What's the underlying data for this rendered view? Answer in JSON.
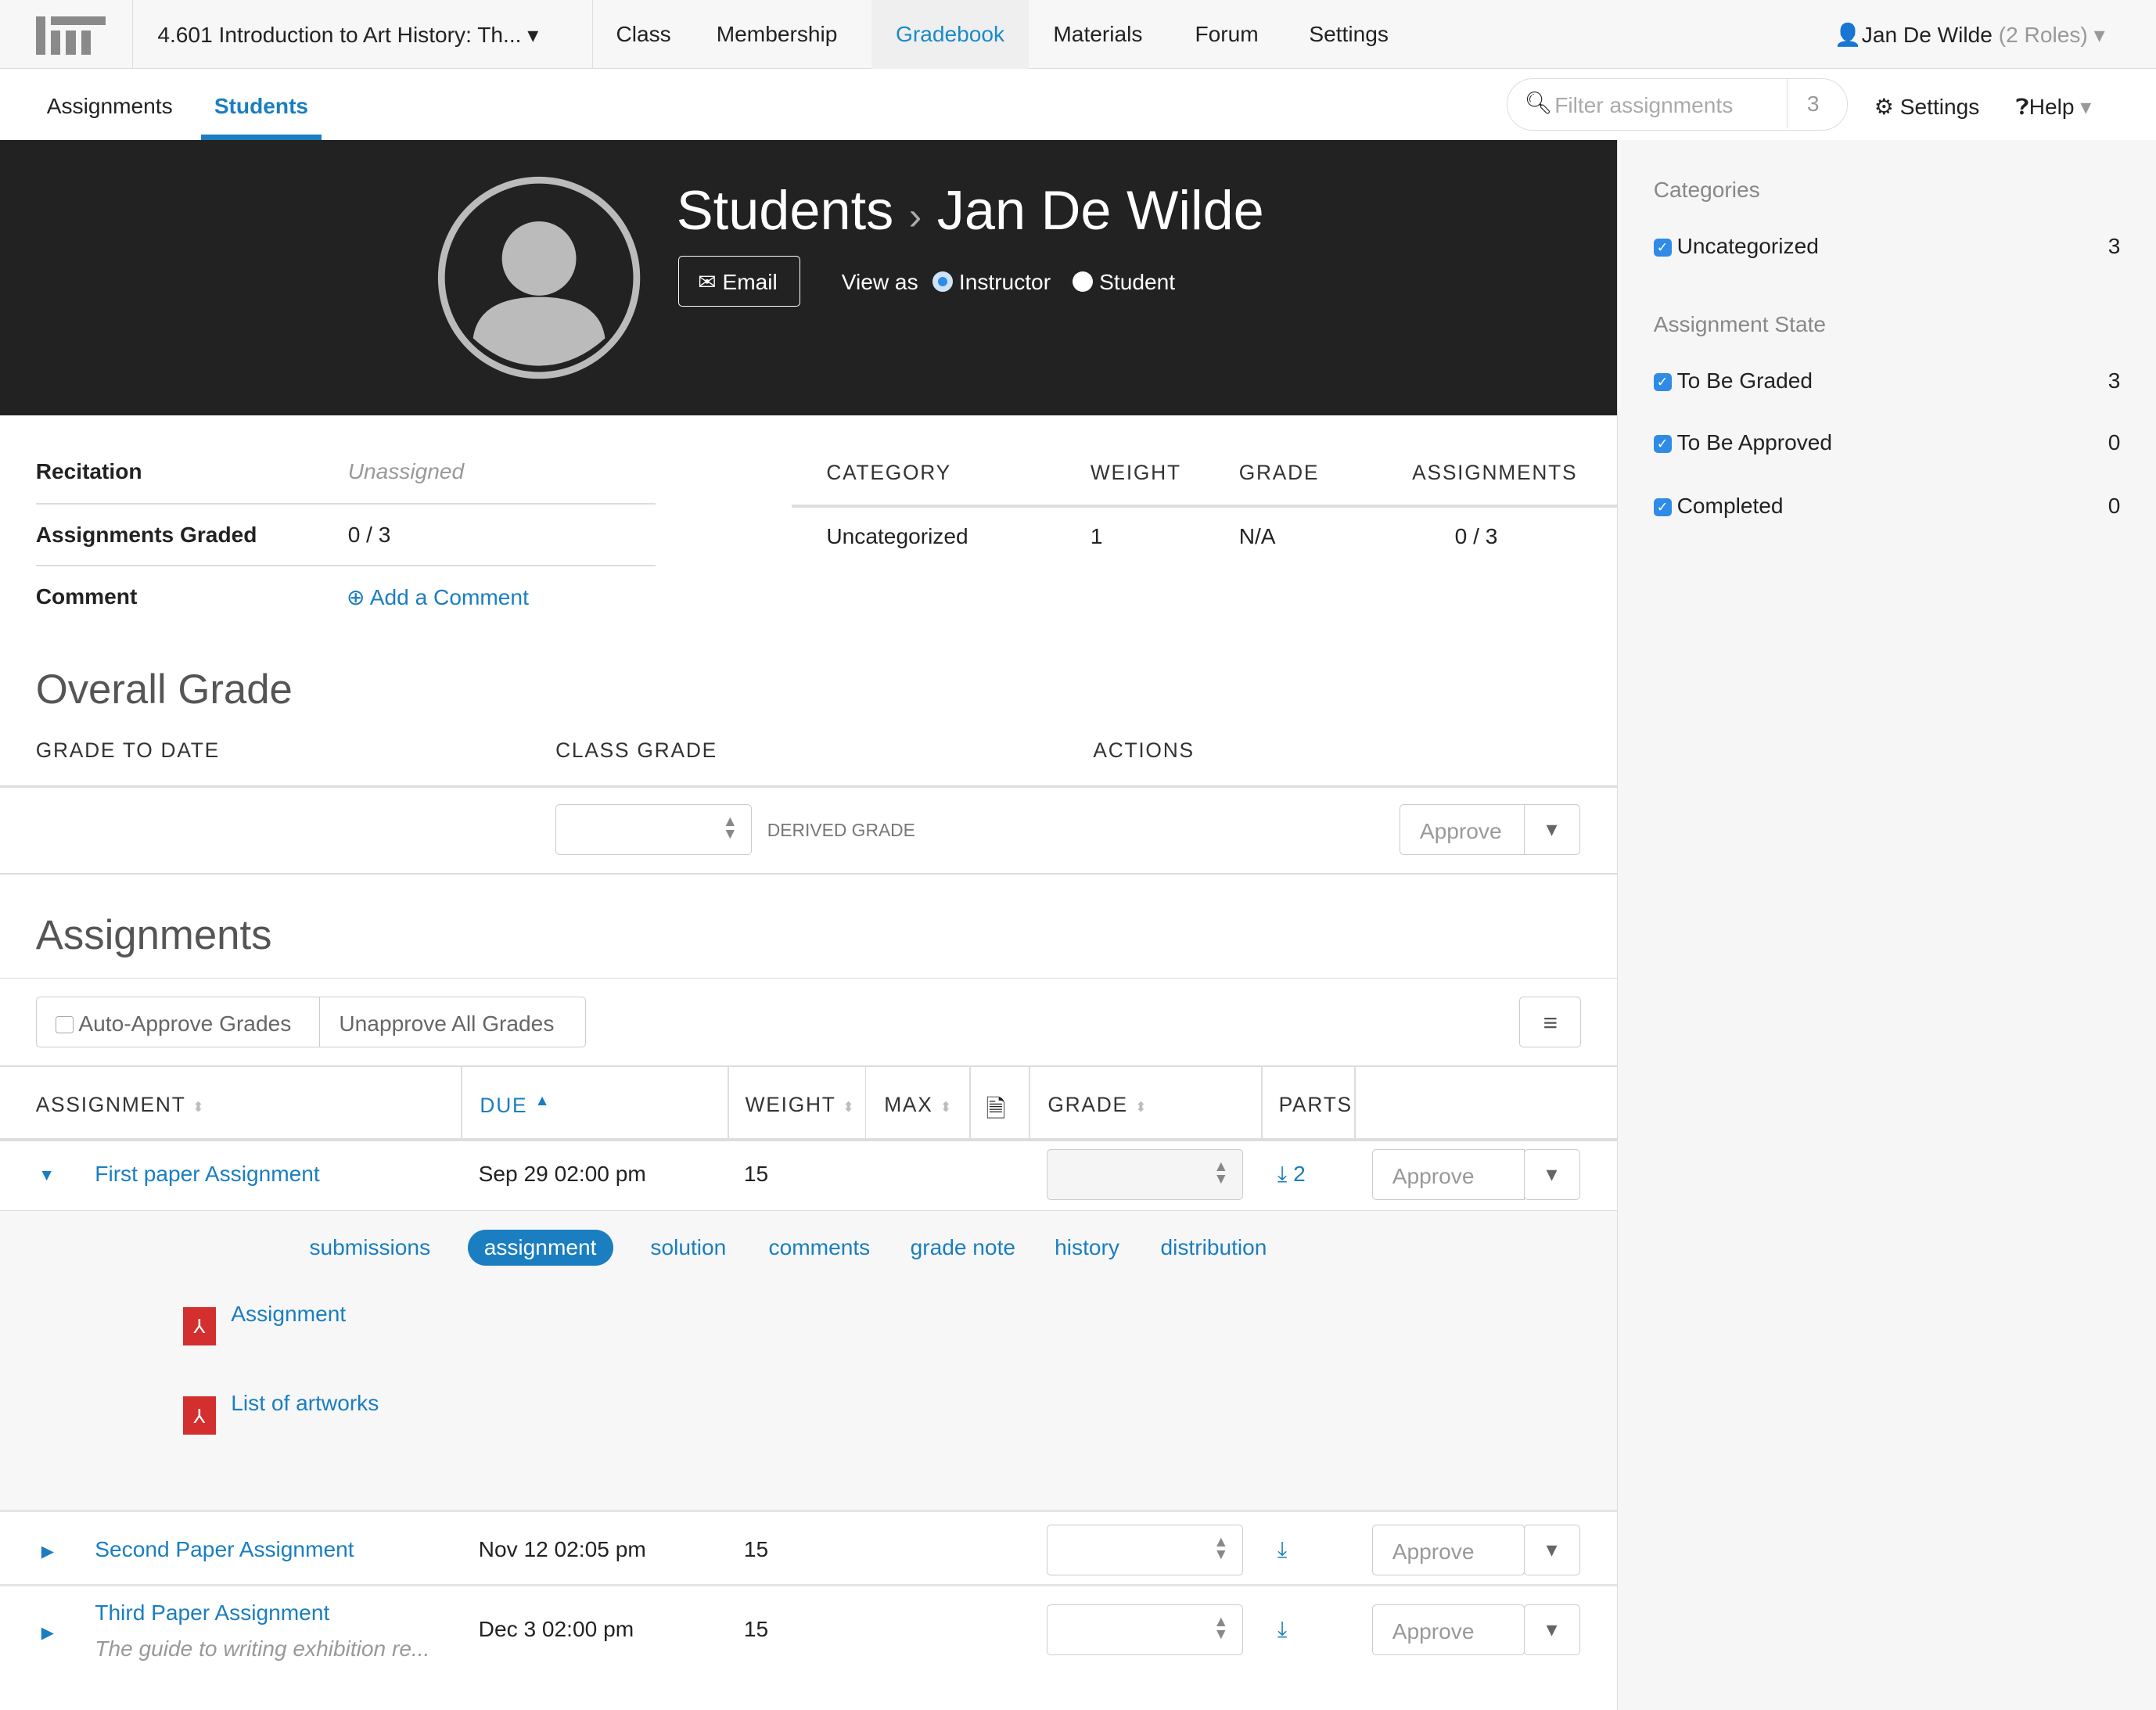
{
  "topnav": {
    "course": "4.601  Introduction to Art History: Th...",
    "items": [
      "Class",
      "Membership",
      "Gradebook",
      "Materials",
      "Forum",
      "Settings"
    ],
    "active": "Gradebook",
    "user": "Jan De Wilde",
    "roles": "(2 Roles)"
  },
  "subnav": {
    "tabs": [
      "Assignments",
      "Students"
    ],
    "active": "Students",
    "filter_placeholder": "Filter assignments",
    "filter_count": "3",
    "settings": "Settings",
    "help": "Help"
  },
  "profile": {
    "breadcrumb_root": "Students",
    "separator": "›",
    "name": "Jan De Wilde",
    "email_label": "Email",
    "view_as": "View as",
    "view_options": [
      "Instructor",
      "Student"
    ],
    "selected_view": "Instructor"
  },
  "info": {
    "rows": [
      {
        "label": "Recitation",
        "value": "Unassigned"
      },
      {
        "label": "Assignments Graded",
        "value": "0 / 3"
      },
      {
        "label": "Comment",
        "value": "Add a Comment"
      }
    ]
  },
  "category_table": {
    "headers": [
      "CATEGORY",
      "WEIGHT",
      "GRADE",
      "ASSIGNMENTS"
    ],
    "rows": [
      [
        "Uncategorized",
        "1",
        "N/A",
        "0 / 3"
      ]
    ]
  },
  "overall": {
    "title": "Overall Grade",
    "headers": [
      "GRADE TO DATE",
      "CLASS GRADE",
      "ACTIONS"
    ],
    "derived": "DERIVED GRADE",
    "approve": "Approve"
  },
  "assignments": {
    "title": "Assignments",
    "auto_approve": "Auto-Approve Grades",
    "unapprove": "Unapprove All  Grades",
    "headers": [
      "ASSIGNMENT",
      "DUE",
      "WEIGHT",
      "MAX",
      "GRADE",
      "PARTS"
    ],
    "rows": [
      {
        "name": "First paper Assignment",
        "due": "Sep 29 02:00 pm",
        "weight": "15",
        "parts": "2",
        "approve": "Approve",
        "expanded": true
      },
      {
        "name": "Second Paper Assignment",
        "due": "Nov 12 02:05 pm",
        "weight": "15",
        "parts": "",
        "approve": "Approve",
        "expanded": false
      },
      {
        "name": "Third Paper Assignment",
        "desc": "The guide to writing exhibition re...",
        "due": "Dec 3 02:00 pm",
        "weight": "15",
        "parts": "",
        "approve": "Approve",
        "expanded": false
      }
    ],
    "detail_tabs": [
      "submissions",
      "assignment",
      "solution",
      "comments",
      "grade note",
      "history",
      "distribution"
    ],
    "active_detail": "assignment",
    "files": [
      "Assignment",
      "List of artworks"
    ]
  },
  "sidebar": {
    "categories_title": "Categories",
    "categories": [
      {
        "label": "Uncategorized",
        "count": "3"
      }
    ],
    "state_title": "Assignment State",
    "states": [
      {
        "label": "To Be Graded",
        "count": "3"
      },
      {
        "label": "To Be Approved",
        "count": "0"
      },
      {
        "label": "Completed",
        "count": "0"
      }
    ]
  },
  "colors": {
    "accent": "#1a7ec0",
    "header_bg": "#222222",
    "checkbox": "#2f8be6",
    "pdf": "#d32f2f"
  }
}
